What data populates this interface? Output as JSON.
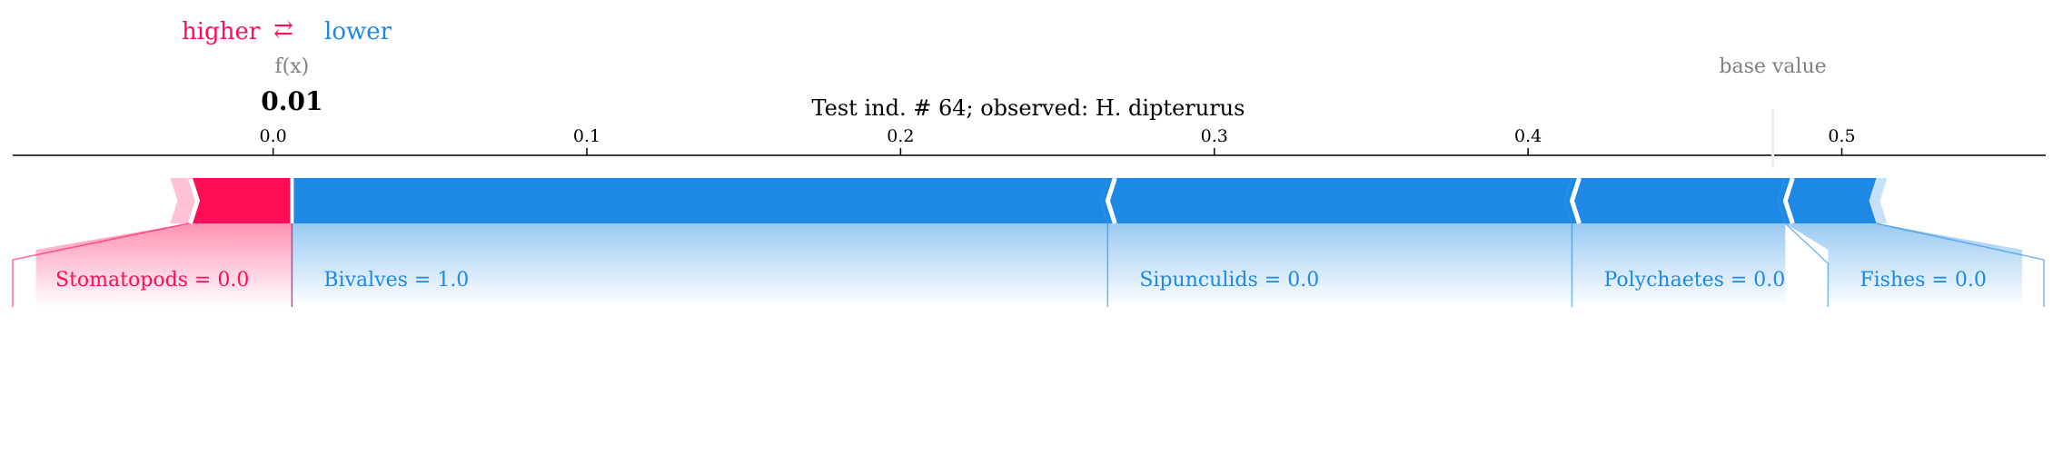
{
  "legend": {
    "higher_label": "higher",
    "arrow_glyph": "⇄",
    "lower_label": "lower"
  },
  "output_label": "f(x)",
  "output_value_text": "0.01",
  "base_value_label": "base value",
  "colors": {
    "positive": "#ff0d57",
    "negative": "#1e88e5",
    "axis": "#000000",
    "muted": "#808080"
  },
  "chart_data": {
    "type": "force",
    "title": "Test ind. # 64; observed: H. dipterurus",
    "xlim": [
      -0.083,
      0.565
    ],
    "ticks": [
      0.0,
      0.1,
      0.2,
      0.3,
      0.4,
      0.5
    ],
    "tick_labels": [
      "0.0",
      "0.1",
      "0.2",
      "0.3",
      "0.4",
      "0.5"
    ],
    "output_value": 0.006,
    "base_value": 0.478,
    "features": [
      {
        "label": "Stomatopods = 0.0",
        "effect": "higher",
        "start": -0.027,
        "end": 0.006
      },
      {
        "label": "Bivalves = 1.0",
        "effect": "lower",
        "start": 0.006,
        "end": 0.266
      },
      {
        "label": "Sipunculids = 0.0",
        "effect": "lower",
        "start": 0.266,
        "end": 0.414
      },
      {
        "label": "Polychaetes = 0.0",
        "effect": "lower",
        "start": 0.414,
        "end": 0.482
      },
      {
        "label": "Fishes = 0.0",
        "effect": "lower",
        "start": 0.482,
        "end": 0.511
      }
    ]
  }
}
